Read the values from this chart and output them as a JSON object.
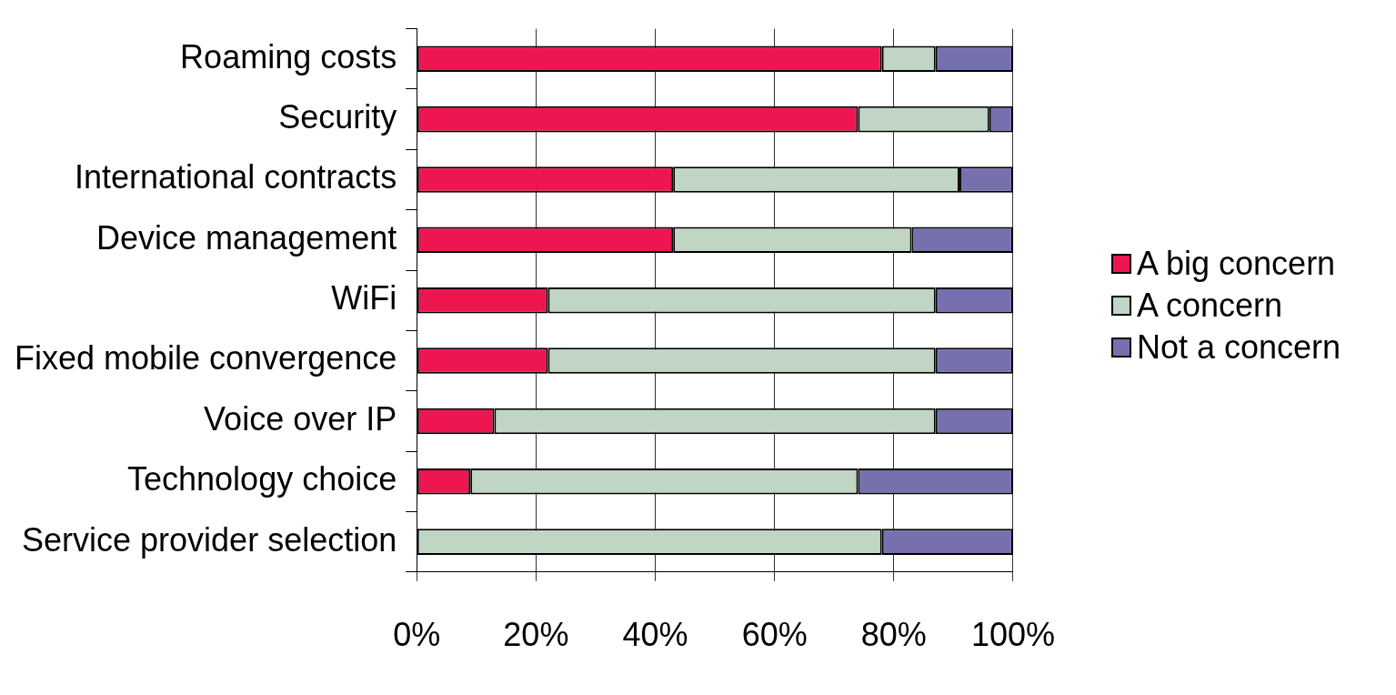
{
  "chart_data": {
    "type": "bar",
    "orientation": "horizontal",
    "stacked": true,
    "categories": [
      "Roaming costs",
      "Security",
      "International contracts",
      "Device management",
      "WiFi",
      "Fixed mobile convergence",
      "Voice over IP",
      "Technology choice",
      "Service provider selection"
    ],
    "series": [
      {
        "name": "A big concern",
        "color": "#ee1651",
        "values": [
          78,
          74,
          43,
          43,
          22,
          22,
          13,
          9,
          0
        ]
      },
      {
        "name": "A concern",
        "color": "#c0d5c4",
        "values": [
          9,
          22,
          48,
          40,
          65,
          65,
          74,
          65,
          78
        ]
      },
      {
        "name": "Not a concern",
        "color": "#7670ae",
        "values": [
          13,
          4,
          9,
          17,
          13,
          13,
          13,
          26,
          22
        ]
      }
    ],
    "xlim": [
      0,
      100
    ],
    "xticks": [
      {
        "value": 0,
        "label": "0%"
      },
      {
        "value": 20,
        "label": "20%"
      },
      {
        "value": 40,
        "label": "40%"
      },
      {
        "value": 60,
        "label": "60%"
      },
      {
        "value": 80,
        "label": "80%"
      },
      {
        "value": 100,
        "label": "100%"
      }
    ],
    "grid": "x",
    "legend": "right"
  }
}
